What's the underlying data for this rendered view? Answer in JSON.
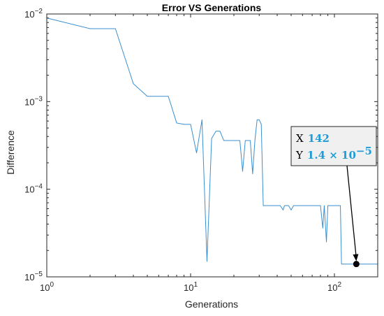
{
  "chart_data": {
    "type": "line",
    "title": "Error VS Generations",
    "xlabel": "Generations",
    "ylabel": "Difference",
    "xscale": "log",
    "yscale": "log",
    "xlim": [
      1,
      200
    ],
    "ylim": [
      1e-05,
      0.01
    ],
    "x_ticks": [
      {
        "value": 1,
        "base": "10",
        "exp": "0"
      },
      {
        "value": 10,
        "base": "10",
        "exp": "1"
      },
      {
        "value": 100,
        "base": "10",
        "exp": "2"
      }
    ],
    "y_ticks": [
      {
        "value": 1e-05,
        "base": "10",
        "exp": "−5"
      },
      {
        "value": 0.0001,
        "base": "10",
        "exp": "−4"
      },
      {
        "value": 0.001,
        "base": "10",
        "exp": "−3"
      },
      {
        "value": 0.01,
        "base": "10",
        "exp": "−2"
      }
    ],
    "grid": false,
    "line_color": "#3a8fd1",
    "series": [
      {
        "x": [
          1,
          2,
          3,
          4,
          5,
          6,
          7,
          8,
          9,
          10,
          11,
          12,
          13,
          14,
          15,
          16,
          17,
          20,
          22,
          23,
          24,
          25,
          26,
          27,
          28,
          29,
          30,
          31,
          32,
          33,
          34,
          35,
          38,
          40,
          42,
          44,
          45,
          48,
          50,
          52,
          55,
          60,
          70,
          80,
          83,
          85,
          88,
          90,
          95,
          100,
          110,
          112,
          115,
          120,
          130,
          140,
          142,
          150,
          200
        ],
        "y": [
          0.009,
          0.0068,
          0.0068,
          0.0016,
          0.00115,
          0.00115,
          0.00115,
          0.00057,
          0.00055,
          0.00055,
          0.00026,
          0.00062,
          1.5e-05,
          0.00038,
          0.00046,
          0.00046,
          0.00036,
          0.00036,
          0.00036,
          0.00016,
          0.00036,
          0.00036,
          0.00036,
          0.00015,
          0.00036,
          0.00062,
          0.00062,
          0.00055,
          6.5e-05,
          6.5e-05,
          6.5e-05,
          6.5e-05,
          6.5e-05,
          6.5e-05,
          6.5e-05,
          5.8e-05,
          6.5e-05,
          6.5e-05,
          5.8e-05,
          6.5e-05,
          6.5e-05,
          6.5e-05,
          6.5e-05,
          6.5e-05,
          3.6e-05,
          6.5e-05,
          2.5e-05,
          6.5e-05,
          6.5e-05,
          6.5e-05,
          6.5e-05,
          1.4e-05,
          1.4e-05,
          1.4e-05,
          1.4e-05,
          1.4e-05,
          1.4e-05,
          1.4e-05,
          1.4e-05
        ]
      }
    ],
    "datatip": {
      "x_prefix": "X",
      "x_value": "142",
      "y_prefix": "Y",
      "y_value": "1.4 × 10",
      "y_value_exp": "−5",
      "x": 142,
      "y": 1.4e-05
    }
  }
}
